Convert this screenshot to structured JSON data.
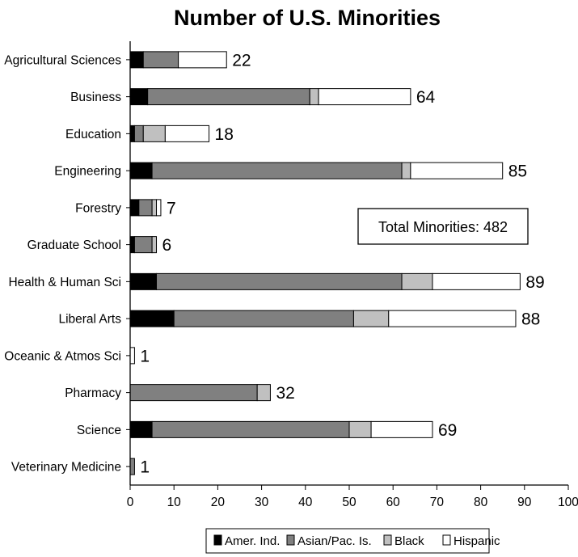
{
  "chart_data": {
    "type": "bar",
    "orientation": "horizontal",
    "stacked": true,
    "title": "Number of U.S. Minorities",
    "xlabel": "",
    "ylabel": "",
    "xlim": [
      0,
      100
    ],
    "xticks": [
      "0",
      "10",
      "20",
      "30",
      "40",
      "50",
      "60",
      "70",
      "80",
      "90",
      "100"
    ],
    "grid": false,
    "legend_position": "bottom",
    "categories": [
      "Agricultural Sciences",
      "Business",
      "Education",
      "Engineering",
      "Forestry",
      "Graduate School",
      "Health & Human Sci",
      "Liberal Arts",
      "Oceanic & Atmos Sci",
      "Pharmacy",
      "Science",
      "Veterinary Medicine"
    ],
    "series": [
      {
        "name": "Amer. Ind.",
        "color": "#000000",
        "values": [
          3,
          4,
          1,
          5,
          2,
          1,
          6,
          10,
          0,
          0,
          5,
          0
        ]
      },
      {
        "name": "Asian/Pac. Is.",
        "color": "#808080",
        "values": [
          8,
          37,
          2,
          57,
          3,
          4,
          56,
          41,
          0,
          29,
          45,
          1
        ]
      },
      {
        "name": "Black",
        "color": "#c0c0c0",
        "values": [
          0,
          2,
          5,
          2,
          1,
          1,
          7,
          8,
          0,
          3,
          5,
          0
        ]
      },
      {
        "name": "Hispanic",
        "color": "#ffffff",
        "values": [
          11,
          21,
          10,
          21,
          1,
          0,
          20,
          29,
          1,
          0,
          14,
          0
        ]
      }
    ],
    "totals": [
      "22",
      "64",
      "18",
      "85",
      "7",
      "6",
      "89",
      "88",
      "1",
      "32",
      "69",
      "1"
    ],
    "annotation": "Total Minorities: 482"
  }
}
